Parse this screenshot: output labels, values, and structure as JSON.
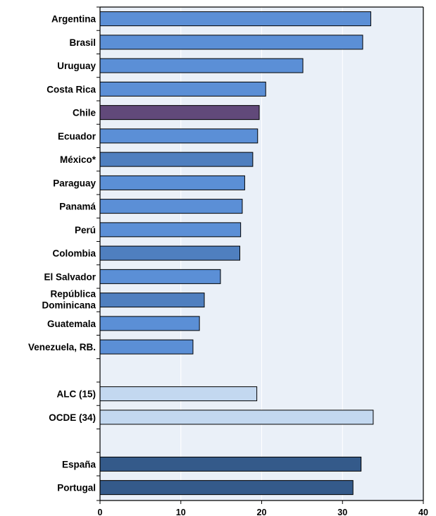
{
  "chart_data": {
    "type": "bar",
    "orientation": "horizontal",
    "title": "",
    "xlabel": "",
    "ylabel": "",
    "xlim": [
      0,
      40
    ],
    "xticks": [
      "0",
      "10",
      "20",
      "30",
      "40"
    ],
    "grid": true,
    "legend": "none",
    "categories": [
      "Argentina",
      "Brasil",
      "Uruguay",
      "Costa Rica",
      "Chile",
      "Ecuador",
      "México*",
      "Paraguay",
      "Panamá",
      "Perú",
      "Colombia",
      "El Salvador",
      "República Dominicana",
      "Guatemala",
      "Venezuela, RB.",
      "",
      "ALC (15)",
      "OCDE (34)",
      "",
      "España",
      "Portugal"
    ],
    "values": [
      33.5,
      32.5,
      25.1,
      20.5,
      19.7,
      19.5,
      18.9,
      17.9,
      17.6,
      17.4,
      17.3,
      14.9,
      12.9,
      12.3,
      11.5,
      null,
      19.4,
      33.8,
      null,
      32.3,
      31.3
    ],
    "bar_colors": [
      "#5b8fd6",
      "#5b8fd6",
      "#5b8fd6",
      "#5b8fd6",
      "#61497a",
      "#5b8fd6",
      "#4f7fbf",
      "#5b8fd6",
      "#5b8fd6",
      "#5b8fd6",
      "#4f7fbf",
      "#5b8fd6",
      "#4f7fbf",
      "#5b8fd6",
      "#5b8fd6",
      "",
      "#c3d8f0",
      "#c3d8f0",
      "",
      "#345a8a",
      "#345a8a"
    ]
  },
  "style": {
    "plot_background": "#eaf0f8",
    "grid_color": "#ffffff",
    "axis_color": "#000000",
    "bar_outline": "#000000"
  }
}
